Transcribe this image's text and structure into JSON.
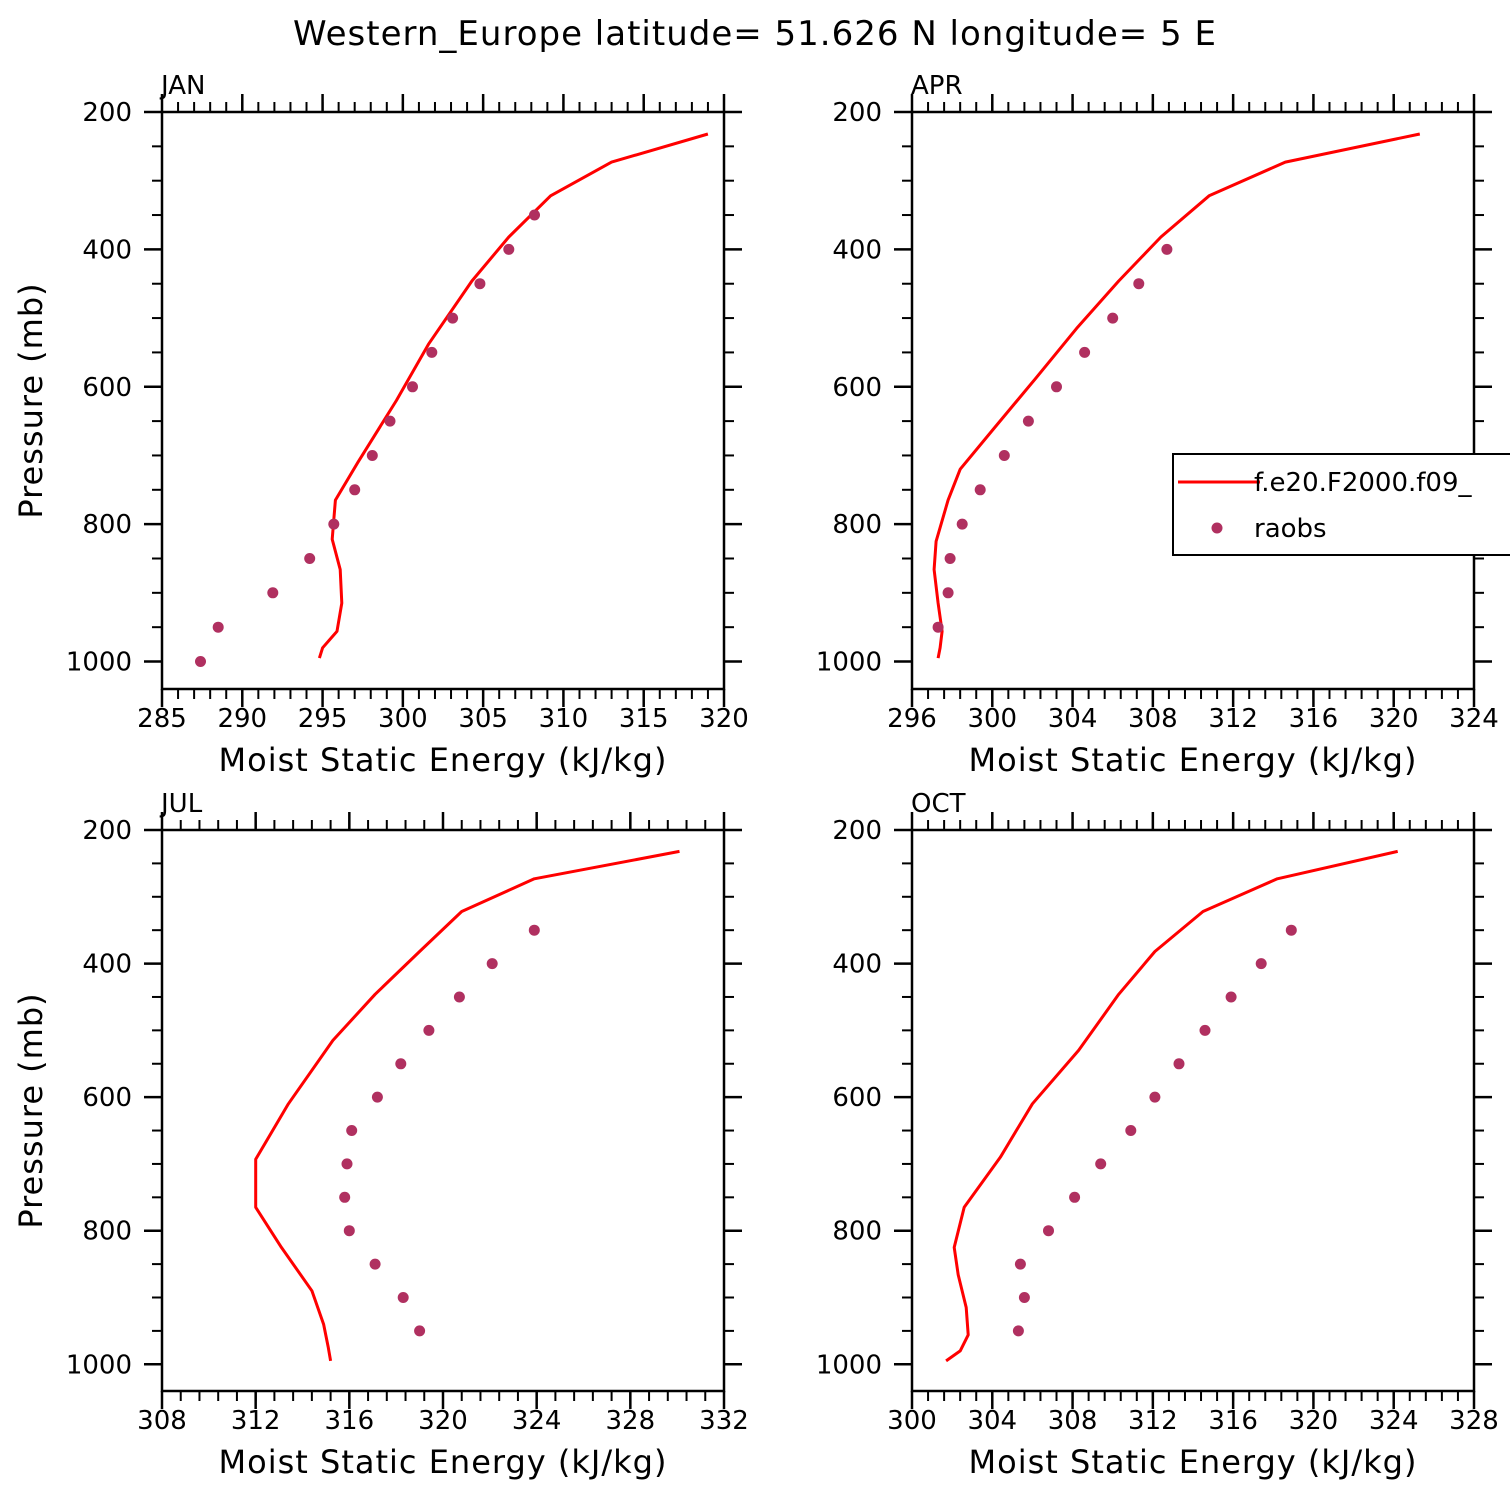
{
  "figure": {
    "title": "Western_Europe  latitude= 51.626 N longitude= 5 E"
  },
  "colors": {
    "model_line": "#ff0000",
    "obs_marker": "#b03060",
    "axis": "#000000"
  },
  "legend": {
    "panel": "APR",
    "entries": [
      {
        "label": "f.e20.F2000.f09_",
        "style": "line",
        "color": "#ff0000"
      },
      {
        "label": "raobs",
        "style": "marker",
        "color": "#b03060"
      }
    ]
  },
  "chart_data": [
    {
      "type": "line",
      "title": "JAN",
      "xlabel": "Moist Static Energy (kJ/kg)",
      "ylabel": "Pressure (mb)",
      "xlim": [
        285,
        320
      ],
      "xticks": [
        285,
        290,
        295,
        300,
        305,
        310,
        315,
        320
      ],
      "ylim": [
        1040,
        200
      ],
      "yticks": [
        200,
        400,
        600,
        800,
        1000
      ],
      "series": [
        {
          "name": "f.e20.F2000.f09_",
          "kind": "line",
          "x": [
            319.0,
            313.0,
            309.2,
            306.6,
            304.3,
            301.6,
            299.6,
            297.2,
            295.8,
            295.6,
            296.1,
            296.2,
            295.9,
            295.0,
            294.8
          ],
          "y": [
            232,
            273,
            322,
            382,
            446,
            538,
            620,
            710,
            765,
            822,
            866,
            915,
            956,
            980,
            995
          ]
        },
        {
          "name": "raobs",
          "kind": "scatter",
          "x": [
            308.2,
            306.6,
            304.8,
            303.1,
            301.8,
            300.6,
            299.2,
            298.1,
            297.0,
            295.7,
            294.2,
            291.9,
            288.5,
            287.4
          ],
          "y": [
            350,
            400,
            450,
            500,
            550,
            600,
            650,
            700,
            750,
            800,
            850,
            900,
            950,
            1000
          ]
        }
      ]
    },
    {
      "type": "line",
      "title": "APR",
      "xlabel": "Moist Static Energy (kJ/kg)",
      "ylabel": "",
      "xlim": [
        296,
        324
      ],
      "xticks": [
        296,
        300,
        304,
        308,
        312,
        316,
        320,
        324
      ],
      "ylim": [
        1040,
        200
      ],
      "yticks": [
        200,
        400,
        600,
        800,
        1000
      ],
      "series": [
        {
          "name": "f.e20.F2000.f09_",
          "kind": "line",
          "x": [
            321.3,
            314.6,
            310.8,
            308.4,
            306.3,
            304.2,
            302.1,
            300.1,
            298.4,
            297.8,
            297.2,
            297.1,
            297.3,
            297.5,
            297.4,
            297.3
          ],
          "y": [
            232,
            273,
            322,
            382,
            446,
            515,
            590,
            660,
            720,
            765,
            825,
            866,
            915,
            956,
            980,
            995
          ]
        },
        {
          "name": "raobs",
          "kind": "scatter",
          "x": [
            308.7,
            307.3,
            306.0,
            304.6,
            303.2,
            301.8,
            300.6,
            299.4,
            298.5,
            297.9,
            297.8,
            297.3
          ],
          "y": [
            400,
            450,
            500,
            550,
            600,
            650,
            700,
            750,
            800,
            850,
            900,
            950
          ]
        }
      ]
    },
    {
      "type": "line",
      "title": "JUL",
      "xlabel": "Moist Static Energy (kJ/kg)",
      "ylabel": "Pressure (mb)",
      "xlim": [
        308,
        332
      ],
      "xticks": [
        308,
        312,
        316,
        320,
        324,
        328,
        332
      ],
      "ylim": [
        1040,
        200
      ],
      "yticks": [
        200,
        400,
        600,
        800,
        1000
      ],
      "series": [
        {
          "name": "f.e20.F2000.f09_",
          "kind": "line",
          "x": [
            330.1,
            323.9,
            320.8,
            319.0,
            317.1,
            315.3,
            313.4,
            312.0,
            312.0,
            313.1,
            314.4,
            314.9,
            315.1,
            315.2
          ],
          "y": [
            232,
            273,
            322,
            382,
            446,
            515,
            610,
            693,
            765,
            825,
            890,
            940,
            975,
            995
          ]
        },
        {
          "name": "raobs",
          "kind": "scatter",
          "x": [
            323.9,
            322.1,
            320.7,
            319.4,
            318.2,
            317.2,
            316.1,
            315.9,
            315.8,
            316.0,
            317.1,
            318.3,
            319.0
          ],
          "y": [
            350,
            400,
            450,
            500,
            550,
            600,
            650,
            700,
            750,
            800,
            850,
            900,
            950
          ]
        }
      ]
    },
    {
      "type": "line",
      "title": "OCT",
      "xlabel": "Moist Static Energy (kJ/kg)",
      "ylabel": "",
      "xlim": [
        300,
        328
      ],
      "xticks": [
        300,
        304,
        308,
        312,
        316,
        320,
        324,
        328
      ],
      "ylim": [
        1040,
        200
      ],
      "yticks": [
        200,
        400,
        600,
        800,
        1000
      ],
      "series": [
        {
          "name": "f.e20.F2000.f09_",
          "kind": "line",
          "x": [
            324.2,
            318.2,
            314.5,
            312.1,
            310.3,
            308.3,
            306.0,
            304.4,
            302.6,
            302.1,
            302.3,
            302.7,
            302.8,
            302.4,
            301.7
          ],
          "y": [
            232,
            273,
            322,
            382,
            446,
            530,
            610,
            690,
            765,
            825,
            866,
            915,
            956,
            980,
            995
          ]
        },
        {
          "name": "raobs",
          "kind": "scatter",
          "x": [
            318.9,
            317.4,
            315.9,
            314.6,
            313.3,
            312.1,
            310.9,
            309.4,
            308.1,
            306.8,
            305.4,
            305.6,
            305.3
          ],
          "y": [
            350,
            400,
            450,
            500,
            550,
            600,
            650,
            700,
            750,
            800,
            850,
            900,
            950
          ]
        }
      ]
    }
  ]
}
